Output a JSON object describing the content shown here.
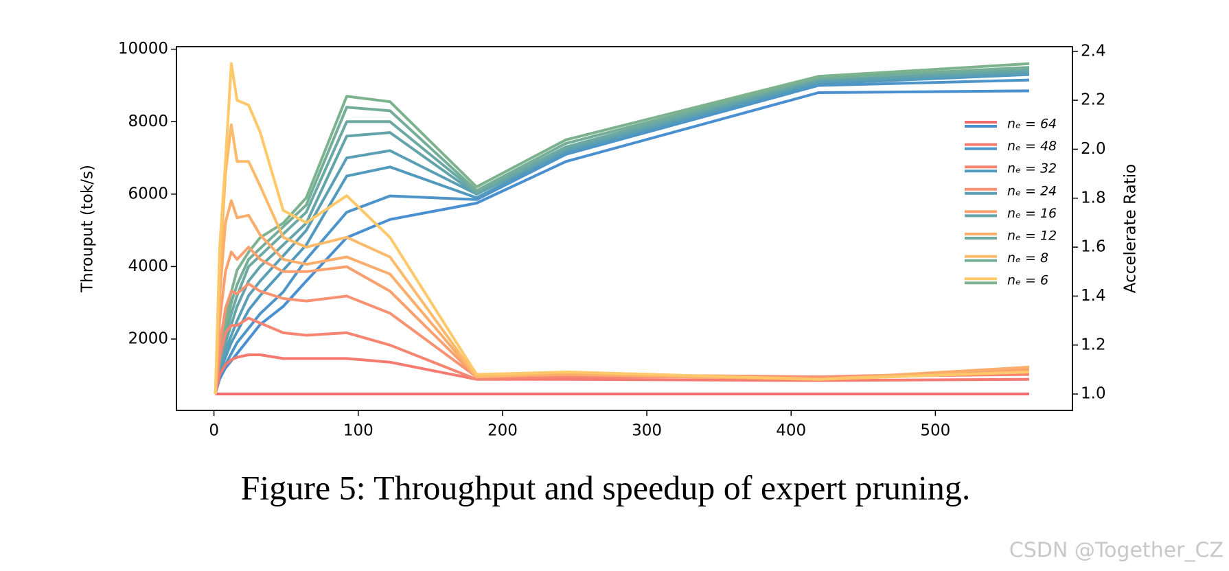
{
  "chart_data": {
    "type": "line",
    "caption": "Figure 5: Throughput and speedup of expert pruning.",
    "watermark": "CSDN @Together_CZ",
    "y_label": "Throuput (tok/s)",
    "y2_label": "Accelerate Ratio",
    "x": [
      1,
      4,
      8,
      12,
      16,
      24,
      32,
      48,
      64,
      92,
      122,
      182,
      244,
      419,
      565
    ],
    "xlim": [
      -26,
      595
    ],
    "xticks": [
      0,
      100,
      200,
      300,
      400,
      500
    ],
    "ylim": [
      30,
      10070
    ],
    "yticks": [
      2000,
      4000,
      6000,
      8000,
      10000
    ],
    "y2lim": [
      0.933,
      2.419
    ],
    "y2ticks": [
      {
        "value": 1.0,
        "label": "1.0"
      },
      1.2,
      1.4,
      1.6,
      1.8,
      {
        "value": 2.0,
        "label": "2.0"
      },
      2.2,
      2.4
    ],
    "legend": "right",
    "series": [
      {
        "name": "nₑ = 64",
        "color": "#f36b6f",
        "axis": "y2",
        "values": [
          1.0,
          1.0,
          1.0,
          1.0,
          1.0,
          1.0,
          1.0,
          1.0,
          1.0,
          1.0,
          1.0,
          1.0,
          1.0,
          1.0,
          1.0
        ]
      },
      {
        "name": "nₑ = 48",
        "color": "#f57a70",
        "axis": "y2",
        "values": [
          1.0,
          1.08,
          1.12,
          1.14,
          1.15,
          1.16,
          1.16,
          1.145,
          1.145,
          1.145,
          1.13,
          1.06,
          1.06,
          1.055,
          1.06
        ]
      },
      {
        "name": "nₑ = 32",
        "color": "#f68672",
        "axis": "y2",
        "values": [
          1.0,
          1.15,
          1.25,
          1.28,
          1.28,
          1.31,
          1.29,
          1.25,
          1.24,
          1.25,
          1.2,
          1.06,
          1.07,
          1.07,
          1.08
        ]
      },
      {
        "name": "nₑ = 24",
        "color": "#f79372",
        "axis": "y2",
        "values": [
          1.0,
          1.2,
          1.35,
          1.42,
          1.41,
          1.45,
          1.42,
          1.39,
          1.38,
          1.4,
          1.33,
          1.07,
          1.08,
          1.07,
          1.09
        ]
      },
      {
        "name": "nₑ = 16",
        "color": "#f9a06e",
        "axis": "y2",
        "values": [
          1.0,
          1.3,
          1.5,
          1.58,
          1.55,
          1.6,
          1.55,
          1.5,
          1.5,
          1.52,
          1.42,
          1.07,
          1.08,
          1.06,
          1.1
        ]
      },
      {
        "name": "nₑ = 12",
        "color": "#fbad6c",
        "axis": "y2",
        "values": [
          1.0,
          1.4,
          1.7,
          1.79,
          1.72,
          1.73,
          1.65,
          1.55,
          1.53,
          1.56,
          1.49,
          1.07,
          1.08,
          1.06,
          1.11
        ]
      },
      {
        "name": "nₑ = 8",
        "color": "#fdba6a",
        "axis": "y2",
        "values": [
          1.0,
          1.5,
          1.9,
          2.1,
          1.95,
          1.95,
          1.85,
          1.64,
          1.6,
          1.64,
          1.56,
          1.07,
          1.09,
          1.06,
          1.09
        ]
      },
      {
        "name": "nₑ = 6",
        "color": "#ffc868",
        "axis": "y2",
        "values": [
          1.0,
          1.6,
          1.95,
          2.35,
          2.2,
          2.18,
          2.07,
          1.75,
          1.7,
          1.81,
          1.64,
          1.08,
          1.09,
          1.06,
          1.09
        ]
      },
      {
        "color": "#4a8fcf",
        "values": [
          500,
          900,
          1200,
          1400,
          1600,
          2000,
          2400,
          2900,
          3600,
          4800,
          5300,
          5750,
          6900,
          8800,
          8850
        ]
      },
      {
        "color": "#4d94c8",
        "values": [
          500,
          1000,
          1300,
          1600,
          1900,
          2300,
          2700,
          3300,
          4200,
          5500,
          5950,
          5850,
          7100,
          9000,
          9150
        ]
      },
      {
        "color": "#529abd",
        "values": [
          500,
          1100,
          1500,
          1900,
          2200,
          2800,
          3200,
          3900,
          4600,
          6500,
          6750,
          5900,
          7150,
          9050,
          9300
        ]
      },
      {
        "color": "#5a9fb3",
        "values": [
          500,
          1200,
          1700,
          2100,
          2500,
          3200,
          3600,
          4300,
          5000,
          7000,
          7200,
          6000,
          7200,
          9100,
          9350
        ]
      },
      {
        "color": "#62a4aa",
        "values": [
          500,
          1300,
          1900,
          2400,
          2900,
          3600,
          4000,
          4600,
          5200,
          7600,
          7700,
          6000,
          7250,
          9150,
          9400
        ]
      },
      {
        "color": "#6ba9a2",
        "values": [
          500,
          1400,
          2100,
          2700,
          3200,
          4000,
          4300,
          4900,
          5500,
          8000,
          8000,
          6050,
          7300,
          9200,
          9450
        ]
      },
      {
        "color": "#74ad98",
        "values": [
          500,
          1500,
          2300,
          3000,
          3500,
          4200,
          4500,
          5100,
          5700,
          8400,
          8300,
          6100,
          7400,
          9200,
          9500
        ]
      },
      {
        "color": "#7db28f",
        "values": [
          500,
          1600,
          2500,
          3300,
          3900,
          4400,
          4800,
          5200,
          5900,
          8700,
          8550,
          6200,
          7500,
          9250,
          9600
        ]
      }
    ]
  }
}
